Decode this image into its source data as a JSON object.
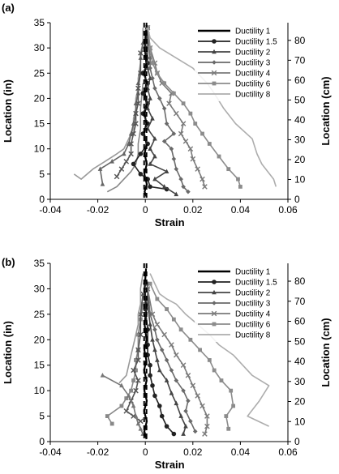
{
  "chart_data": [
    {
      "panel_label": "(a)",
      "type": "line",
      "xlabel": "Strain",
      "ylabel": "Location (in)",
      "y2label": "Location (cm)",
      "xlim": [
        -0.04,
        0.06
      ],
      "ylim": [
        0,
        35
      ],
      "y2lim": [
        0,
        88.9
      ],
      "xticks": [
        "-0.04",
        "-0.02",
        "0",
        "0.02",
        "0.04",
        "0.06"
      ],
      "yticks": [
        "0",
        "5",
        "10",
        "15",
        "20",
        "25",
        "30",
        "35"
      ],
      "y2ticks": [
        "0",
        "10",
        "20",
        "30",
        "40",
        "50",
        "60",
        "70",
        "80"
      ],
      "grid": false,
      "legend_position": "top-right",
      "reference_lines_x": [
        -0.0005,
        0.0005
      ],
      "series": [
        {
          "name": "Ductility 1",
          "color": "#000000",
          "marker": "none",
          "x": [
            0.0005,
            -0.0003,
            0.0006,
            -0.0004,
            0.0006,
            -0.0003,
            0.0005,
            -0.0005,
            0.0004,
            -0.0003,
            0.0005,
            -0.0002,
            0.0004,
            -0.0003,
            0.0004,
            -0.0002,
            0.0003
          ],
          "y": [
            0.5,
            1.5,
            3,
            5,
            7,
            9,
            11,
            13,
            15,
            17,
            19,
            21,
            23,
            25,
            27,
            30,
            34
          ]
        },
        {
          "name": "Ductility 1.5",
          "color": "#222222",
          "marker": "circle",
          "x": [
            0.009,
            0.002,
            0.001,
            -0.002,
            -0.005,
            -0.002,
            0.001,
            -0.001,
            0.001,
            -0.001,
            0.001,
            -0.001,
            0.001,
            -0.001,
            0.001,
            0,
            0.001
          ],
          "y": [
            2,
            2.5,
            4,
            5,
            7,
            9,
            11,
            13,
            15,
            17,
            19,
            21,
            23,
            25,
            27,
            30,
            34
          ]
        },
        {
          "name": "Ductility 2",
          "color": "#444444",
          "marker": "triangle",
          "x": [
            0.013,
            0.008,
            0.004,
            0.009,
            0.002,
            0.004,
            0.002,
            0.004,
            0.001,
            0.003,
            0.001,
            0.002,
            0.001,
            0.002,
            0.001,
            0.001,
            0.001
          ],
          "y": [
            1,
            2.5,
            4,
            5.5,
            7,
            8.5,
            10,
            12,
            14,
            16,
            18,
            20,
            22,
            24,
            26,
            30,
            34
          ]
        },
        {
          "name": "Ductility 3",
          "color": "#6a6a6a",
          "marker": "diamond",
          "x": [
            0.018,
            0.016,
            0.015,
            0.013,
            0.012,
            0.011,
            0.008,
            0.012,
            0.009,
            0.008,
            0.006,
            0.004,
            0.003,
            0.002,
            0.002,
            0.001
          ],
          "y": [
            1.5,
            2.5,
            4,
            6,
            8,
            10,
            11.5,
            13,
            15,
            18,
            20,
            22,
            24,
            26,
            28,
            33
          ]
        },
        {
          "name": "Ductility 4",
          "color": "#7a7a7a",
          "marker": "x",
          "x": [
            0.025,
            0.024,
            0.022,
            0.02,
            0.019,
            0.017,
            0.015,
            0.016,
            0.013,
            0.01,
            0.011,
            0.007,
            0.005,
            0.004,
            0.002,
            0.001
          ],
          "y": [
            2.5,
            4,
            6,
            8,
            10,
            11.5,
            13,
            15,
            17,
            19,
            21,
            23,
            25,
            27,
            30,
            34
          ]
        },
        {
          "name": "Ductility 6",
          "color": "#8c8c8c",
          "marker": "square",
          "x": [
            0.04,
            0.039,
            0.035,
            0.031,
            0.027,
            0.024,
            0.021,
            0.019,
            0.016,
            0.012,
            0.008,
            0.005,
            0.003,
            0.002,
            0.001
          ],
          "y": [
            2.5,
            4,
            6,
            8.5,
            11,
            13,
            15,
            17,
            19,
            21,
            23,
            25,
            27,
            30,
            34
          ]
        },
        {
          "name": "Ductility 8",
          "color": "#adadad",
          "marker": "none",
          "x": [
            0.055,
            0.054,
            0.049,
            0.047,
            0.045,
            0.038,
            0.033,
            0.029,
            0.026,
            0.02,
            0.013,
            0.006,
            0.002,
            0.001
          ],
          "y": [
            2.5,
            4,
            7,
            9,
            12,
            15,
            18,
            21,
            23,
            26,
            28,
            30,
            32,
            34
          ]
        },
        {
          "name": "",
          "color": "#999999",
          "marker": "none",
          "x": [
            -0.03,
            -0.027,
            -0.022,
            -0.017,
            -0.012,
            -0.009,
            -0.007,
            -0.005,
            -0.005,
            -0.004,
            -0.004,
            -0.003,
            -0.003,
            -0.002,
            -0.002,
            -0.001,
            -0.001
          ],
          "y": [
            5,
            4,
            6,
            7.5,
            9,
            10,
            12,
            14,
            16,
            18,
            20,
            22,
            24,
            27,
            29,
            31,
            34
          ]
        },
        {
          "name": "",
          "color": "#666666",
          "marker": "triangle",
          "x": [
            -0.018,
            -0.019,
            -0.014,
            -0.009,
            -0.007,
            -0.006,
            -0.005,
            -0.004,
            -0.004,
            -0.003,
            -0.003,
            -0.002,
            -0.002,
            -0.001
          ],
          "y": [
            3,
            6,
            7.5,
            9,
            11,
            13,
            15,
            17,
            19,
            21,
            23,
            25,
            28,
            31
          ]
        },
        {
          "name": "",
          "color": "#555555",
          "marker": "x",
          "x": [
            -0.012,
            -0.01,
            -0.008,
            -0.006,
            -0.006,
            -0.005,
            -0.004,
            -0.004,
            -0.003,
            -0.003,
            -0.002,
            -0.002
          ],
          "y": [
            4.5,
            6,
            7.5,
            9,
            11,
            13,
            15,
            17,
            19,
            22,
            25,
            29
          ]
        },
        {
          "name": "",
          "color": "#888888",
          "marker": "none",
          "x": [
            -0.016,
            -0.012,
            -0.009,
            -0.006,
            -0.004,
            -0.003,
            -0.003,
            -0.002,
            -0.002,
            -0.001
          ],
          "y": [
            1.5,
            2.5,
            4,
            5.5,
            7,
            9,
            11,
            14,
            18,
            23
          ]
        }
      ]
    },
    {
      "panel_label": "(b)",
      "type": "line",
      "xlabel": "Strain",
      "ylabel": "Location (in)",
      "y2label": "Location (cm)",
      "xlim": [
        -0.04,
        0.06
      ],
      "ylim": [
        0,
        35
      ],
      "y2lim": [
        0,
        88.9
      ],
      "xticks": [
        "-0.04",
        "-0.02",
        "0",
        "0.02",
        "0.04",
        "0.06"
      ],
      "yticks": [
        "0",
        "5",
        "10",
        "15",
        "20",
        "25",
        "30",
        "35"
      ],
      "y2ticks": [
        "0",
        "10",
        "20",
        "30",
        "40",
        "50",
        "60",
        "70",
        "80"
      ],
      "grid": false,
      "legend_position": "top-right",
      "reference_lines_x": [
        -0.0005,
        0.0005
      ],
      "series": [
        {
          "name": "Ductility 1",
          "color": "#000000",
          "marker": "none",
          "x": [
            0.0005,
            -0.0004,
            0.0006,
            -0.0005,
            0.0006,
            -0.0004,
            0.0005,
            -0.0005,
            0.0004,
            -0.0004,
            0.0005,
            -0.0003,
            0.0004,
            -0.0003,
            0.0003
          ],
          "y": [
            0.5,
            2,
            4,
            6,
            8,
            10,
            12,
            14,
            16,
            18,
            20,
            23,
            26,
            30,
            34
          ]
        },
        {
          "name": "Ductility 1.5",
          "color": "#222222",
          "marker": "circle",
          "x": [
            0.012,
            0.009,
            0.007,
            0.006,
            0.004,
            0.003,
            0.002,
            0.002,
            0.001,
            0.001,
            0.001,
            0,
            0
          ],
          "y": [
            1.5,
            3,
            5,
            7,
            9,
            11,
            13,
            15,
            17,
            19,
            22,
            26,
            31
          ]
        },
        {
          "name": "Ductility 2",
          "color": "#444444",
          "marker": "triangle",
          "x": [
            0.016,
            0.017,
            0.015,
            0.013,
            0.011,
            0.009,
            0.006,
            0.005,
            0.004,
            0.003,
            0.002,
            0.001,
            0.001
          ],
          "y": [
            1.5,
            3,
            5,
            7.5,
            9.5,
            12,
            14,
            16,
            18,
            20,
            23,
            27,
            31
          ]
        },
        {
          "name": "Ductility 3",
          "color": "#6a6a6a",
          "marker": "diamond",
          "x": [
            0.021,
            0.019,
            0.017,
            0.018,
            0.016,
            0.013,
            0.011,
            0.009,
            0.007,
            0.005,
            0.004,
            0.002,
            0.001
          ],
          "y": [
            2,
            4,
            6,
            8,
            10,
            12,
            14,
            16,
            18,
            20,
            22,
            25,
            30
          ]
        },
        {
          "name": "Ductility 4",
          "color": "#7a7a7a",
          "marker": "x",
          "x": [
            0.025,
            0.026,
            0.026,
            0.024,
            0.022,
            0.02,
            0.018,
            0.016,
            0.013,
            0.011,
            0.008,
            0.005,
            0.003,
            0.001
          ],
          "y": [
            1.5,
            3,
            5,
            7,
            9,
            11,
            13,
            15,
            17,
            19,
            21,
            23,
            25,
            30
          ]
        },
        {
          "name": "Ductility 6",
          "color": "#8c8c8c",
          "marker": "square",
          "x": [
            0.035,
            0.034,
            0.037,
            0.036,
            0.032,
            0.029,
            0.027,
            0.023,
            0.019,
            0.015,
            0.012,
            0.009,
            0.005,
            0.002
          ],
          "y": [
            2.5,
            5,
            7,
            10,
            12,
            14,
            16,
            18,
            20,
            22,
            24,
            26,
            28,
            31
          ]
        },
        {
          "name": "Ductility 8",
          "color": "#adadad",
          "marker": "none",
          "x": [
            0.052,
            0.043,
            0.048,
            0.052,
            0.045,
            0.041,
            0.037,
            0.031,
            0.027,
            0.022,
            0.017,
            0.013,
            0.009,
            0.006,
            0.004,
            0.002
          ],
          "y": [
            3,
            5,
            8,
            11,
            13,
            15,
            17,
            19,
            21,
            23,
            25,
            27,
            28,
            29,
            31,
            33
          ]
        },
        {
          "name": "",
          "color": "#888888",
          "marker": "square",
          "x": [
            -0.014,
            -0.016,
            -0.01,
            -0.008,
            -0.006,
            -0.005,
            -0.004,
            -0.004,
            -0.003,
            -0.003,
            -0.002,
            -0.001
          ],
          "y": [
            3.5,
            5,
            7,
            8.5,
            10,
            12,
            14,
            16,
            18,
            21,
            24,
            27
          ]
        },
        {
          "name": "",
          "color": "#555555",
          "marker": "x",
          "x": [
            -0.002,
            -0.005,
            -0.008,
            -0.006,
            -0.004,
            -0.003,
            -0.005,
            -0.003,
            -0.003,
            -0.002,
            -0.002,
            -0.001
          ],
          "y": [
            4,
            5,
            6,
            8,
            10,
            12,
            14,
            16,
            18,
            21,
            25,
            29
          ]
        },
        {
          "name": "",
          "color": "#999999",
          "marker": "none",
          "x": [
            -0.011,
            -0.008,
            -0.007,
            -0.006,
            -0.005,
            -0.004,
            -0.003,
            -0.003,
            -0.002,
            -0.002,
            -0.001
          ],
          "y": [
            11.5,
            13,
            15,
            17,
            19,
            21,
            23,
            25,
            27,
            30,
            33
          ]
        },
        {
          "name": "",
          "color": "#777777",
          "marker": "triangle",
          "x": [
            -0.018,
            -0.01,
            -0.007,
            -0.005,
            -0.004,
            -0.003,
            -0.002,
            -0.001
          ],
          "y": [
            13,
            11,
            9,
            7,
            5,
            3.5,
            2.5,
            1.5
          ]
        }
      ]
    }
  ]
}
